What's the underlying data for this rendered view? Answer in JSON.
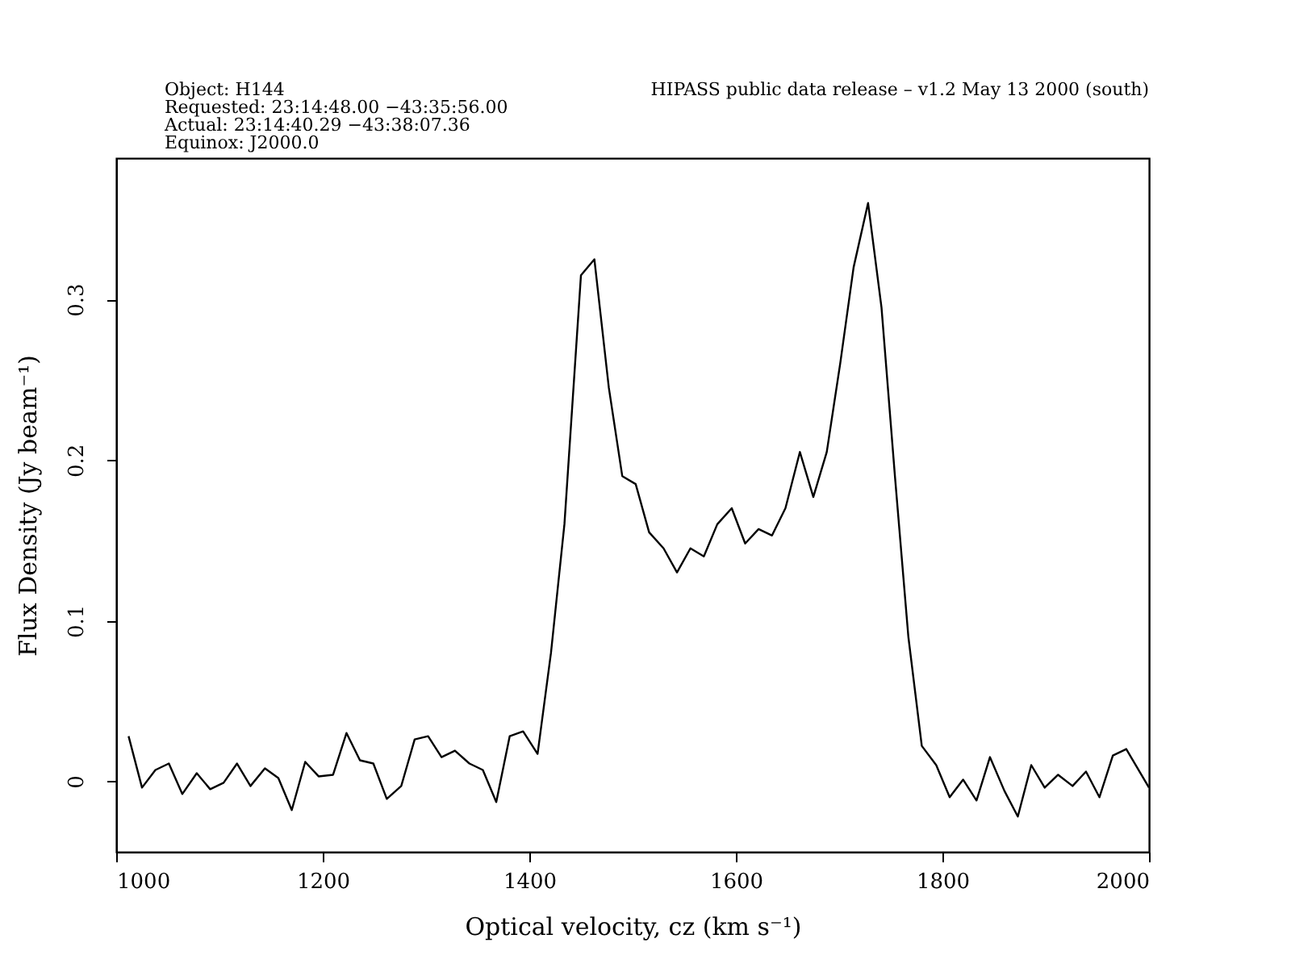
{
  "chart_data": {
    "type": "line",
    "annotations": [
      "Object: H144",
      "Requested: 23:14:48.00  −43:35:56.00",
      "Actual: 23:14:40.29  −43:38:07.36",
      "Equinox: J2000.0",
      "HIPASS public data release – v1.2 May 13 2000 (south)"
    ],
    "xlabel": "Optical velocity, cz (km s⁻¹)",
    "ylabel": "Flux Density (Jy beam⁻¹)",
    "xlim": [
      1000,
      2000
    ],
    "xticks": [
      1000,
      1200,
      1400,
      1600,
      1800,
      2000
    ],
    "ylim": [
      -0.044,
      0.388
    ],
    "yticks": [
      0,
      0.1,
      0.2,
      0.3
    ],
    "grid": false,
    "marker": "none",
    "line_style": "solid",
    "series": [
      {
        "color": "#000000",
        "x": [
          1012,
          1025,
          1038,
          1051,
          1064,
          1078,
          1091,
          1104,
          1117,
          1130,
          1144,
          1157,
          1170,
          1183,
          1196,
          1210,
          1223,
          1236,
          1249,
          1262,
          1276,
          1289,
          1302,
          1315,
          1328,
          1342,
          1355,
          1368,
          1381,
          1394,
          1408,
          1421,
          1434,
          1450,
          1463,
          1477,
          1490,
          1503,
          1516,
          1530,
          1543,
          1556,
          1569,
          1582,
          1596,
          1609,
          1622,
          1635,
          1648,
          1662,
          1675,
          1688,
          1701,
          1714,
          1728,
          1741,
          1754,
          1767,
          1780,
          1794,
          1807,
          1820,
          1833,
          1846,
          1860,
          1873,
          1886,
          1899,
          1912,
          1926,
          1939,
          1952,
          1965,
          1978,
          2000
        ],
        "values": [
          0.028,
          -0.004,
          0.007,
          0.011,
          -0.008,
          0.005,
          -0.005,
          -0.001,
          0.011,
          -0.003,
          0.008,
          0.002,
          -0.018,
          0.012,
          0.003,
          0.004,
          0.03,
          0.013,
          0.011,
          -0.011,
          -0.003,
          0.026,
          0.028,
          0.015,
          0.019,
          0.011,
          0.007,
          -0.013,
          0.028,
          0.031,
          0.017,
          0.08,
          0.16,
          0.315,
          0.325,
          0.245,
          0.19,
          0.185,
          0.155,
          0.145,
          0.13,
          0.145,
          0.14,
          0.16,
          0.17,
          0.148,
          0.157,
          0.153,
          0.17,
          0.205,
          0.177,
          0.205,
          0.26,
          0.32,
          0.36,
          0.295,
          0.19,
          0.09,
          0.022,
          0.01,
          -0.01,
          0.001,
          -0.012,
          0.015,
          -0.006,
          -0.022,
          0.01,
          -0.004,
          0.004,
          -0.003,
          0.006,
          -0.01,
          0.016,
          0.02,
          -0.004
        ]
      }
    ]
  }
}
